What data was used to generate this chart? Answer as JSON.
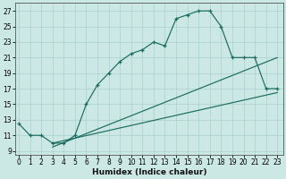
{
  "xlabel": "Humidex (Indice chaleur)",
  "bg_color": "#cce8e4",
  "grid_color": "#aad0cc",
  "line_color": "#1a6b60",
  "xlim": [
    -0.3,
    23.5
  ],
  "ylim": [
    8.5,
    28
  ],
  "xticks": [
    0,
    1,
    2,
    3,
    4,
    5,
    6,
    7,
    8,
    9,
    10,
    11,
    12,
    13,
    14,
    15,
    16,
    17,
    18,
    19,
    20,
    21,
    22,
    23
  ],
  "yticks": [
    9,
    11,
    13,
    15,
    17,
    19,
    21,
    23,
    25,
    27
  ],
  "main_x": [
    0,
    1,
    2,
    3,
    4,
    5,
    6,
    7,
    8,
    9,
    10,
    11,
    12,
    13,
    14,
    15,
    16,
    17,
    18,
    19,
    20,
    21,
    22,
    23
  ],
  "main_y": [
    12.5,
    11.0,
    11.0,
    10.0,
    10.0,
    11.0,
    15.0,
    17.5,
    19.0,
    20.5,
    21.5,
    22.0,
    23.0,
    22.5,
    26.0,
    26.5,
    27.0,
    27.0,
    25.0,
    21.0,
    21.0,
    21.0,
    17.0,
    17.0
  ],
  "line2_x": [
    3,
    23
  ],
  "line2_y": [
    10.0,
    16.5
  ],
  "line3_x": [
    3,
    23
  ],
  "line3_y": [
    9.5,
    21.0
  ]
}
